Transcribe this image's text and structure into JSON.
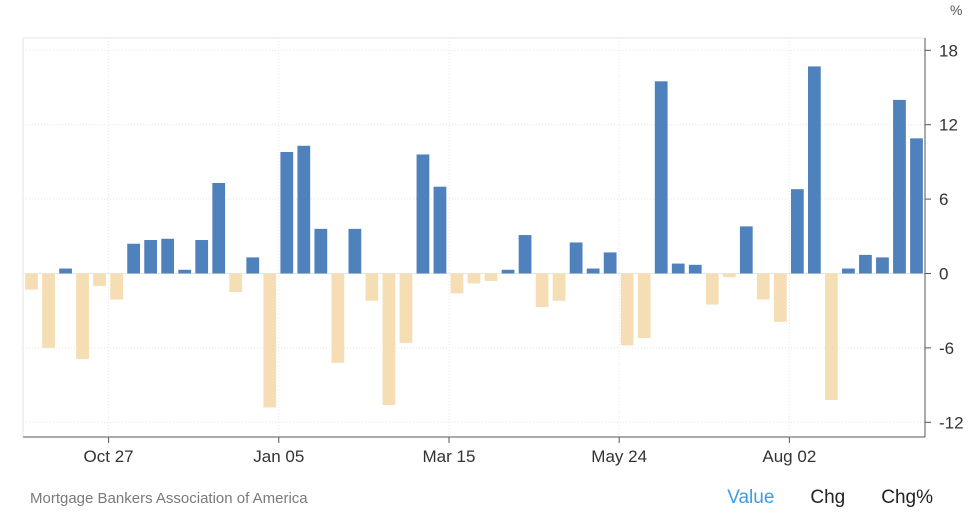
{
  "chart_data": {
    "type": "bar",
    "unit": "%",
    "ylim": [
      -13,
      19
    ],
    "yticks": [
      18,
      12,
      6,
      0,
      -6,
      -12
    ],
    "xtick_labels": [
      {
        "label": "Oct 27",
        "index": 5
      },
      {
        "label": "Jan 05",
        "index": 15
      },
      {
        "label": "Mar 15",
        "index": 25
      },
      {
        "label": "May 24",
        "index": 35
      },
      {
        "label": "Aug 02",
        "index": 45
      }
    ],
    "positive_color": "#4f81bd",
    "negative_color": "#f5deb3",
    "grid": true,
    "values": [
      -1.3,
      -6.0,
      0.4,
      -6.9,
      -1.0,
      -2.1,
      2.4,
      2.7,
      2.8,
      0.3,
      2.7,
      7.3,
      -1.5,
      1.3,
      -10.8,
      9.8,
      10.3,
      3.6,
      -7.2,
      3.6,
      -2.2,
      -10.6,
      -5.6,
      9.6,
      7.0,
      -1.6,
      -0.8,
      -0.6,
      0.3,
      3.1,
      -2.7,
      -2.2,
      2.5,
      0.4,
      1.7,
      -5.8,
      -5.2,
      15.5,
      0.8,
      0.7,
      -2.5,
      -0.3,
      3.8,
      -2.1,
      -3.9,
      6.8,
      16.7,
      -10.2,
      0.4,
      1.5,
      1.3,
      14.0,
      10.9
    ]
  },
  "footer": {
    "source": "Mortgage Bankers Association of America",
    "tabs": [
      {
        "label": "Value",
        "active": true
      },
      {
        "label": "Chg",
        "active": false
      },
      {
        "label": "Chg%",
        "active": false
      }
    ]
  }
}
